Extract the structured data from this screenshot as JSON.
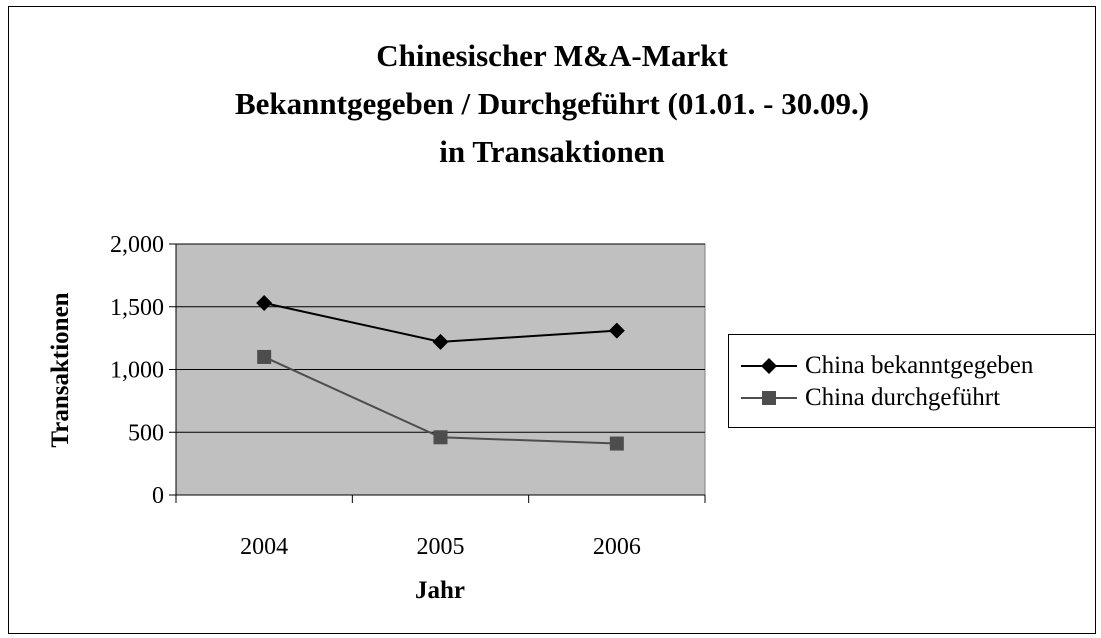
{
  "chart_data": {
    "type": "line",
    "title": [
      "Chinesischer M&A-Markt",
      "Bekanntgegeben / Durchgeführt (01.01. - 30.09.)",
      "in Transaktionen"
    ],
    "xlabel": "Jahr",
    "ylabel": "Transaktionen",
    "categories": [
      "2004",
      "2005",
      "2006"
    ],
    "ylim": [
      0,
      2000
    ],
    "yticks": [
      0,
      500,
      1000,
      1500,
      2000
    ],
    "ytick_labels": [
      "0",
      "500",
      "1,000",
      "1,500",
      "2,000"
    ],
    "grid": true,
    "legend_position": "right",
    "plot_background": "#c0c0c0",
    "series": [
      {
        "name": "China bekanntgegeben",
        "values": [
          1530,
          1220,
          1310
        ],
        "color": "#000000",
        "marker": "diamond"
      },
      {
        "name": "China durchgeführt",
        "values": [
          1100,
          460,
          410
        ],
        "color": "#4d4d4d",
        "marker": "square"
      }
    ]
  }
}
